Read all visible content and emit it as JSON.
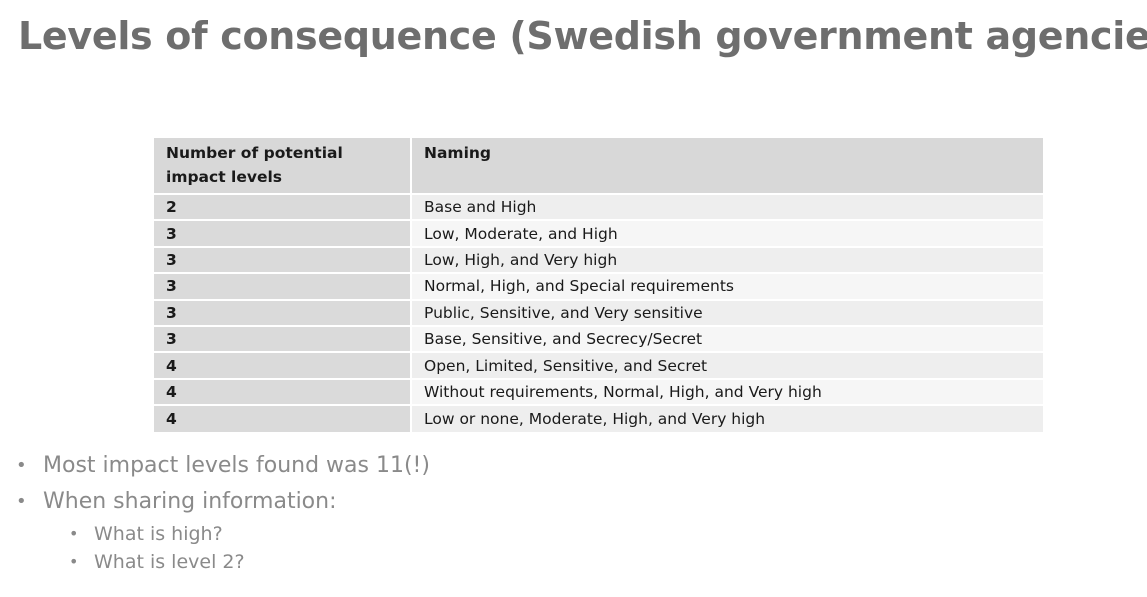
{
  "title": "Levels of consequence (Swedish government agencies)",
  "table": {
    "headers": [
      "Number of potential impact levels",
      "Naming"
    ],
    "rows": [
      {
        "levels": "2",
        "naming": "Base and High"
      },
      {
        "levels": "3",
        "naming": "Low, Moderate, and High"
      },
      {
        "levels": "3",
        "naming": "Low, High, and Very high"
      },
      {
        "levels": "3",
        "naming": "Normal, High, and Special requirements"
      },
      {
        "levels": "3",
        "naming": "Public, Sensitive, and Very sensitive"
      },
      {
        "levels": "3",
        "naming": "Base, Sensitive, and Secrecy/Secret"
      },
      {
        "levels": "4",
        "naming": "Open, Limited, Sensitive, and Secret"
      },
      {
        "levels": "4",
        "naming": "Without requirements, Normal, High, and Very high"
      },
      {
        "levels": "4",
        "naming": "Low or none, Moderate, High, and Very high"
      }
    ]
  },
  "bullets": [
    {
      "text": "Most impact levels found was 11(!)"
    },
    {
      "text": "When sharing information:",
      "sub": [
        "What is high?",
        "What is level 2?"
      ]
    }
  ],
  "bullet_glyph": "•"
}
